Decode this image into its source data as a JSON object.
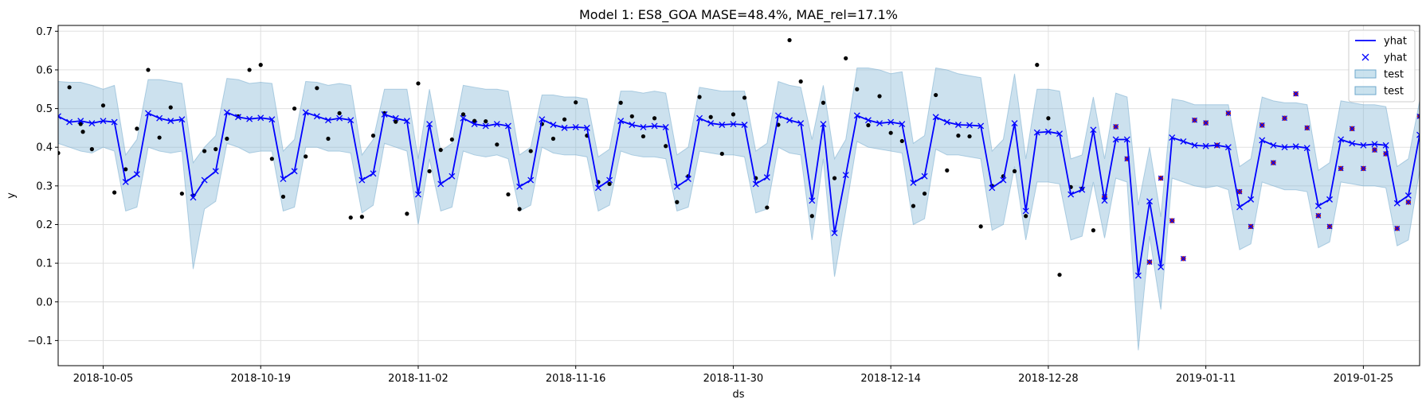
{
  "chart_data": {
    "type": "line",
    "title": "Model 1: ES8_GOA MASE=48.4%, MAE_rel=17.1%",
    "xlabel": "ds",
    "ylabel": "y",
    "x_start": "2018-10-01",
    "x_end": "2019-01-30",
    "xlim": [
      0,
      121
    ],
    "ylim": [
      -0.165,
      0.715
    ],
    "yticks": [
      -0.1,
      0.0,
      0.1,
      0.2,
      0.3,
      0.4,
      0.5,
      0.6,
      0.7
    ],
    "ytick_labels": [
      "−0.1",
      "0.0",
      "0.1",
      "0.2",
      "0.3",
      "0.4",
      "0.5",
      "0.6",
      "0.7"
    ],
    "xtick_days": [
      4,
      18,
      32,
      46,
      60,
      74,
      88,
      102,
      116
    ],
    "xtick_labels": [
      "2018-10-05",
      "2018-10-19",
      "2018-11-02",
      "2018-11-16",
      "2018-11-30",
      "2018-12-14",
      "2018-12-28",
      "2019-01-11",
      "2019-01-25"
    ],
    "grid": true,
    "legend_position": "top-right",
    "legend": [
      {
        "label": "yhat",
        "kind": "line",
        "color": "#0000ff"
      },
      {
        "label": "yhat",
        "kind": "marker-x",
        "color": "#0000ff"
      },
      {
        "label": "test",
        "kind": "band",
        "color": "#a6cee3"
      },
      {
        "label": "test",
        "kind": "band",
        "color": "#a6cee3"
      }
    ],
    "colors": {
      "forecast": "#0000ff",
      "band": "#7fb5d5",
      "band_edge": "#6fa8cc",
      "actual": "#000000",
      "test_marker": "#b22222",
      "grid": "#e0e0e0"
    },
    "yhat": [
      0.48,
      0.465,
      0.468,
      0.462,
      0.468,
      0.465,
      0.31,
      0.33,
      0.488,
      0.475,
      0.468,
      0.472,
      0.27,
      0.315,
      0.338,
      0.49,
      0.478,
      0.473,
      0.476,
      0.472,
      0.318,
      0.338,
      0.49,
      0.48,
      0.47,
      0.475,
      0.47,
      0.315,
      0.332,
      0.485,
      0.475,
      0.468,
      0.278,
      0.46,
      0.305,
      0.325,
      0.475,
      0.46,
      0.455,
      0.46,
      0.455,
      0.298,
      0.315,
      0.472,
      0.458,
      0.45,
      0.452,
      0.45,
      0.295,
      0.315,
      0.468,
      0.458,
      0.452,
      0.455,
      0.452,
      0.298,
      0.318,
      0.475,
      0.462,
      0.458,
      0.46,
      0.458,
      0.305,
      0.322,
      0.482,
      0.47,
      0.462,
      0.262,
      0.46,
      0.178,
      0.328,
      0.482,
      0.47,
      0.462,
      0.465,
      0.46,
      0.308,
      0.325,
      0.478,
      0.465,
      0.458,
      0.457,
      0.455,
      0.295,
      0.315,
      0.462,
      0.235,
      0.438,
      0.44,
      0.435,
      0.278,
      0.29,
      0.445,
      0.262,
      0.42,
      0.42,
      0.068,
      0.26,
      0.09,
      0.425,
      0.415,
      0.405,
      0.403,
      0.405,
      0.4,
      0.245,
      0.265,
      0.418,
      0.405,
      0.4,
      0.402,
      0.398,
      0.248,
      0.265,
      0.42,
      0.41,
      0.405,
      0.408,
      0.405,
      0.255,
      0.275,
      0.432,
      0.425,
      0.418,
      0.42,
      0.425
    ],
    "band_upper": [
      0.57,
      0.568,
      0.568,
      0.56,
      0.55,
      0.56,
      0.38,
      0.42,
      0.575,
      0.575,
      0.57,
      0.565,
      0.36,
      0.4,
      0.43,
      0.578,
      0.575,
      0.565,
      0.568,
      0.565,
      0.39,
      0.42,
      0.57,
      0.568,
      0.56,
      0.565,
      0.56,
      0.38,
      0.42,
      0.55,
      0.55,
      0.55,
      0.37,
      0.55,
      0.39,
      0.41,
      0.56,
      0.555,
      0.55,
      0.55,
      0.545,
      0.38,
      0.4,
      0.535,
      0.535,
      0.53,
      0.53,
      0.525,
      0.375,
      0.395,
      0.545,
      0.545,
      0.54,
      0.545,
      0.54,
      0.38,
      0.4,
      0.555,
      0.55,
      0.545,
      0.545,
      0.545,
      0.39,
      0.41,
      0.57,
      0.56,
      0.555,
      0.42,
      0.56,
      0.37,
      0.42,
      0.605,
      0.605,
      0.6,
      0.59,
      0.595,
      0.41,
      0.43,
      0.605,
      0.6,
      0.59,
      0.585,
      0.58,
      0.39,
      0.42,
      0.59,
      0.37,
      0.55,
      0.55,
      0.545,
      0.37,
      0.38,
      0.53,
      0.37,
      0.54,
      0.53,
      0.25,
      0.4,
      0.22,
      0.525,
      0.52,
      0.51,
      0.51,
      0.51,
      0.51,
      0.35,
      0.37,
      0.53,
      0.52,
      0.515,
      0.515,
      0.51,
      0.34,
      0.36,
      0.52,
      0.515,
      0.51,
      0.51,
      0.505,
      0.35,
      0.37,
      0.52,
      0.515,
      0.51,
      0.505,
      0.5
    ],
    "band_lower": [
      0.41,
      0.4,
      0.39,
      0.385,
      0.4,
      0.39,
      0.235,
      0.245,
      0.4,
      0.39,
      0.385,
      0.39,
      0.085,
      0.24,
      0.26,
      0.41,
      0.4,
      0.385,
      0.39,
      0.39,
      0.235,
      0.245,
      0.4,
      0.4,
      0.39,
      0.39,
      0.385,
      0.23,
      0.25,
      0.41,
      0.4,
      0.39,
      0.2,
      0.37,
      0.235,
      0.245,
      0.39,
      0.38,
      0.375,
      0.38,
      0.37,
      0.235,
      0.25,
      0.4,
      0.385,
      0.38,
      0.38,
      0.375,
      0.235,
      0.25,
      0.39,
      0.38,
      0.375,
      0.375,
      0.37,
      0.235,
      0.245,
      0.39,
      0.385,
      0.38,
      0.38,
      0.375,
      0.23,
      0.24,
      0.4,
      0.385,
      0.38,
      0.16,
      0.37,
      0.065,
      0.235,
      0.415,
      0.4,
      0.395,
      0.39,
      0.385,
      0.2,
      0.215,
      0.395,
      0.38,
      0.38,
      0.375,
      0.37,
      0.185,
      0.2,
      0.35,
      0.16,
      0.31,
      0.31,
      0.305,
      0.16,
      0.17,
      0.31,
      0.165,
      0.32,
      0.31,
      -0.125,
      0.17,
      -0.02,
      0.32,
      0.31,
      0.3,
      0.295,
      0.3,
      0.29,
      0.135,
      0.15,
      0.31,
      0.3,
      0.29,
      0.29,
      0.285,
      0.14,
      0.155,
      0.31,
      0.305,
      0.3,
      0.3,
      0.295,
      0.145,
      0.16,
      0.34,
      0.335,
      0.33,
      0.33,
      0.335
    ],
    "actual": [
      [
        0,
        0.385
      ],
      [
        1,
        0.555
      ],
      [
        2,
        0.46
      ],
      [
        2.2,
        0.44
      ],
      [
        3,
        0.395
      ],
      [
        4,
        0.508
      ],
      [
        5,
        0.283
      ],
      [
        6,
        0.343
      ],
      [
        7,
        0.448
      ],
      [
        8,
        0.6
      ],
      [
        9,
        0.425
      ],
      [
        10,
        0.503
      ],
      [
        11,
        0.28
      ],
      [
        12,
        0.275
      ],
      [
        13,
        0.39
      ],
      [
        14,
        0.395
      ],
      [
        15,
        0.422
      ],
      [
        16,
        0.48
      ],
      [
        17,
        0.6
      ],
      [
        18,
        0.613
      ],
      [
        19,
        0.37
      ],
      [
        20,
        0.272
      ],
      [
        21,
        0.5
      ],
      [
        22,
        0.376
      ],
      [
        23,
        0.553
      ],
      [
        24,
        0.422
      ],
      [
        25,
        0.488
      ],
      [
        26,
        0.218
      ],
      [
        27,
        0.22
      ],
      [
        28,
        0.43
      ],
      [
        29,
        0.488
      ],
      [
        30,
        0.466
      ],
      [
        31,
        0.228
      ],
      [
        32,
        0.565
      ],
      [
        33,
        0.338
      ],
      [
        34,
        0.393
      ],
      [
        35,
        0.42
      ],
      [
        36,
        0.485
      ],
      [
        37,
        0.468
      ],
      [
        38,
        0.467
      ],
      [
        39,
        0.407
      ],
      [
        40,
        0.278
      ],
      [
        41,
        0.24
      ],
      [
        42,
        0.39
      ],
      [
        43,
        0.46
      ],
      [
        44,
        0.422
      ],
      [
        45,
        0.472
      ],
      [
        46,
        0.516
      ],
      [
        47,
        0.43
      ],
      [
        48,
        0.31
      ],
      [
        49,
        0.305
      ],
      [
        50,
        0.515
      ],
      [
        51,
        0.48
      ],
      [
        52,
        0.428
      ],
      [
        53,
        0.475
      ],
      [
        54,
        0.403
      ],
      [
        55,
        0.258
      ],
      [
        56,
        0.325
      ],
      [
        57,
        0.53
      ],
      [
        58,
        0.478
      ],
      [
        59,
        0.383
      ],
      [
        60,
        0.485
      ],
      [
        61,
        0.528
      ],
      [
        62,
        0.32
      ],
      [
        63,
        0.244
      ],
      [
        64,
        0.458
      ],
      [
        65,
        0.677
      ],
      [
        66,
        0.57
      ],
      [
        67,
        0.222
      ],
      [
        68,
        0.515
      ],
      [
        69,
        0.32
      ],
      [
        70,
        0.63
      ],
      [
        71,
        0.55
      ],
      [
        72,
        0.457
      ],
      [
        73,
        0.532
      ],
      [
        74,
        0.437
      ],
      [
        75,
        0.416
      ],
      [
        76,
        0.248
      ],
      [
        77,
        0.28
      ],
      [
        78,
        0.535
      ],
      [
        79,
        0.34
      ],
      [
        80,
        0.43
      ],
      [
        81,
        0.428
      ],
      [
        82,
        0.195
      ],
      [
        83,
        0.3
      ],
      [
        84,
        0.325
      ],
      [
        85,
        0.338
      ],
      [
        86,
        0.222
      ],
      [
        87,
        0.613
      ],
      [
        88,
        0.475
      ],
      [
        89,
        0.07
      ],
      [
        90,
        0.297
      ],
      [
        91,
        0.293
      ],
      [
        92,
        0.185
      ]
    ],
    "test_points": [
      [
        93,
        0.272
      ],
      [
        94,
        0.453
      ],
      [
        95,
        0.37
      ],
      [
        97,
        0.103
      ],
      [
        98,
        0.32
      ],
      [
        99,
        0.21
      ],
      [
        100,
        0.112
      ],
      [
        101,
        0.47
      ],
      [
        102,
        0.463
      ],
      [
        103,
        0.405
      ],
      [
        104,
        0.488
      ],
      [
        105,
        0.285
      ],
      [
        106,
        0.195
      ],
      [
        107,
        0.457
      ],
      [
        108,
        0.36
      ],
      [
        109,
        0.475
      ],
      [
        110,
        0.538
      ],
      [
        111,
        0.45
      ],
      [
        112,
        0.223
      ],
      [
        113,
        0.195
      ],
      [
        114,
        0.345
      ],
      [
        115,
        0.448
      ],
      [
        116,
        0.345
      ],
      [
        117,
        0.393
      ],
      [
        118,
        0.383
      ],
      [
        119,
        0.19
      ],
      [
        120,
        0.258
      ],
      [
        121,
        0.48
      ],
      [
        122,
        0.378
      ],
      [
        123,
        0.383
      ],
      [
        124,
        0.398
      ]
    ]
  }
}
